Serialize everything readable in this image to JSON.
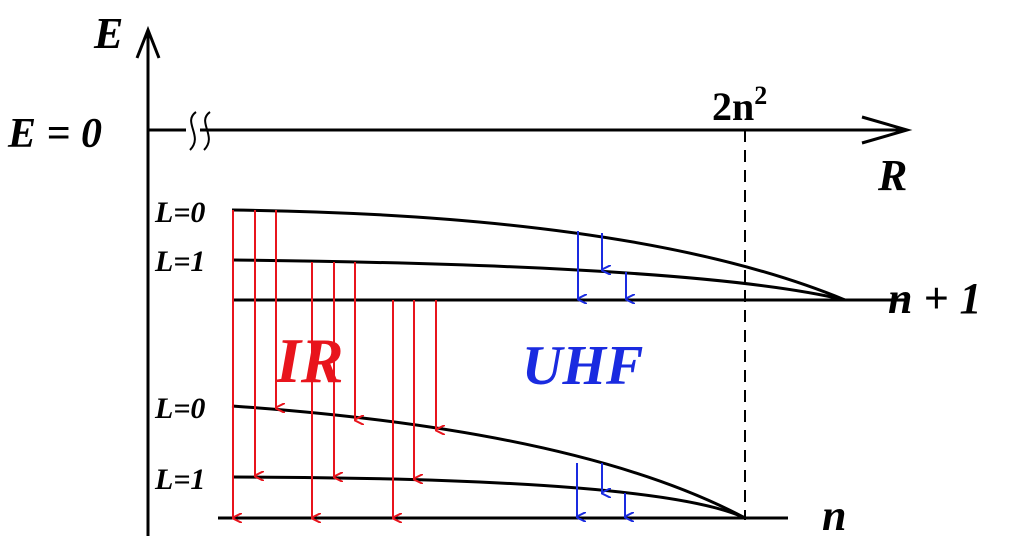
{
  "axes": {
    "energy_label": "E",
    "zero_label": "E = 0",
    "radius_label": "R",
    "limit_label_base": "2n",
    "limit_label_exp": "2"
  },
  "levels": {
    "upper_n_label": "n + 1",
    "lower_n_label": "n",
    "upper_l0_label": "L=0",
    "upper_l1_label": "L=1",
    "lower_l0_label": "L=0",
    "lower_l1_label": "L=1"
  },
  "regions": {
    "ir_label": "IR",
    "uhf_label": "UHF"
  },
  "colors": {
    "ir": "#e8141c",
    "uhf": "#1a2be0",
    "line": "#000000"
  }
}
